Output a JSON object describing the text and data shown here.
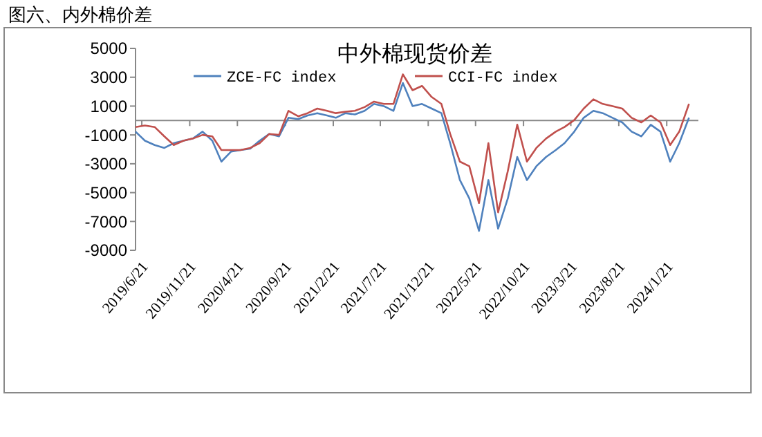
{
  "chart_data": {
    "type": "line",
    "title": "中外棉现货价差",
    "subtitle": "图六、内外棉价差",
    "x": [
      "2019-06",
      "2019-07",
      "2019-08",
      "2019-09",
      "2019-10",
      "2019-11",
      "2019-12",
      "2020-01",
      "2020-02",
      "2020-03",
      "2020-04",
      "2020-05",
      "2020-06",
      "2020-07",
      "2020-08",
      "2020-09",
      "2020-10",
      "2020-11",
      "2020-12",
      "2021-01",
      "2021-02",
      "2021-03",
      "2021-04",
      "2021-05",
      "2021-06",
      "2021-07",
      "2021-08",
      "2021-09",
      "2021-10",
      "2021-11",
      "2021-12",
      "2022-01",
      "2022-02",
      "2022-03",
      "2022-04",
      "2022-05",
      "2022-06",
      "2022-07",
      "2022-08",
      "2022-09",
      "2022-10",
      "2022-11",
      "2022-12",
      "2023-01",
      "2023-02",
      "2023-03",
      "2023-04",
      "2023-05",
      "2023-06",
      "2023-07",
      "2023-08",
      "2023-09",
      "2023-10",
      "2023-11",
      "2023-12",
      "2024-01",
      "2024-02",
      "2024-03",
      "2024-04"
    ],
    "series": [
      {
        "name": "ZCE-FC index",
        "color": "#4f81bd",
        "values": [
          -770,
          -1400,
          -1700,
          -1900,
          -1570,
          -1400,
          -1250,
          -770,
          -1400,
          -2850,
          -2150,
          -2050,
          -1950,
          -1400,
          -930,
          -1100,
          190,
          100,
          350,
          510,
          350,
          190,
          510,
          420,
          670,
          1150,
          1000,
          670,
          2600,
          1000,
          1150,
          830,
          510,
          -1570,
          -4130,
          -5400,
          -7650,
          -4130,
          -7500,
          -5400,
          -2530,
          -4130,
          -3170,
          -2530,
          -2050,
          -1570,
          -770,
          190,
          670,
          510,
          190,
          -130,
          -770,
          -1100,
          -290,
          -770,
          -2850,
          -1570,
          190
        ]
      },
      {
        "name": "CCI-FC index",
        "color": "#c0504d",
        "values": [
          -450,
          -350,
          -450,
          -1100,
          -1700,
          -1400,
          -1250,
          -1000,
          -1100,
          -2050,
          -2050,
          -2050,
          -1900,
          -1570,
          -930,
          -1000,
          670,
          290,
          510,
          830,
          670,
          510,
          610,
          670,
          930,
          1310,
          1150,
          1150,
          3200,
          2100,
          2400,
          1630,
          1150,
          -930,
          -2850,
          -3170,
          -5730,
          -1570,
          -6370,
          -3500,
          -290,
          -2850,
          -1900,
          -1250,
          -770,
          -450,
          30,
          830,
          1470,
          1150,
          1000,
          830,
          190,
          -130,
          350,
          -130,
          -1700,
          -770,
          1150
        ]
      }
    ],
    "xlim": [
      "2019-06",
      "2024-05"
    ],
    "xticks": [
      {
        "value": "2019-06-21",
        "label": "2019/6/21"
      },
      {
        "value": "2019-11-21",
        "label": "2019/11/21"
      },
      {
        "value": "2020-04-21",
        "label": "2020/4/21"
      },
      {
        "value": "2020-09-21",
        "label": "2020/9/21"
      },
      {
        "value": "2021-02-21",
        "label": "2021/2/21"
      },
      {
        "value": "2021-07-21",
        "label": "2021/7/21"
      },
      {
        "value": "2021-12-21",
        "label": "2021/12/21"
      },
      {
        "value": "2022-05-21",
        "label": "2022/5/21"
      },
      {
        "value": "2022-10-21",
        "label": "2022/10/21"
      },
      {
        "value": "2023-03-21",
        "label": "2023/3/21"
      },
      {
        "value": "2023-08-21",
        "label": "2023/8/21"
      },
      {
        "value": "2024-01-21",
        "label": "2024/1/21"
      }
    ],
    "ylim": [
      -9000,
      5000
    ],
    "yticks": [
      -9000,
      -7000,
      -5000,
      -3000,
      -1000,
      1000,
      3000,
      5000
    ],
    "grid": false,
    "legend": "top",
    "marker": "none",
    "line_style": "solid"
  }
}
